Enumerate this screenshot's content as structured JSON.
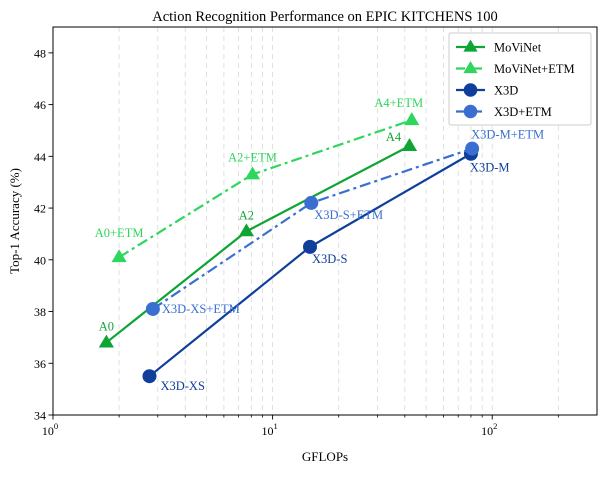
{
  "chart_data": {
    "type": "line",
    "title": "Action Recognition Performance on EPIC KITCHENS 100",
    "xlabel": "GFLOPs",
    "ylabel": "Top-1 Accuracy (%)",
    "x_scale": "log",
    "xlim": [
      1,
      300
    ],
    "ylim": [
      34,
      49
    ],
    "x_ticks": [
      1,
      10,
      100
    ],
    "x_tick_labels": [
      {
        "base": "10",
        "exp": "0"
      },
      {
        "base": "10",
        "exp": "1"
      },
      {
        "base": "10",
        "exp": "2"
      }
    ],
    "y_ticks": [
      34,
      36,
      38,
      40,
      42,
      44,
      46,
      48
    ],
    "y_tick_labels": [
      "34",
      "36",
      "38",
      "40",
      "42",
      "44",
      "46",
      "48"
    ],
    "grid": "vertical-dashed",
    "legend_position": "top-right",
    "series": [
      {
        "name": "MoViNet",
        "color": "#0fa534",
        "marker": "triangle",
        "line": "solid",
        "points": [
          {
            "x": 1.75,
            "y": 36.8,
            "label": "A0"
          },
          {
            "x": 7.6,
            "y": 41.1,
            "label": "A2"
          },
          {
            "x": 42.0,
            "y": 44.4,
            "label": "A4"
          }
        ]
      },
      {
        "name": "MoViNet+ETM",
        "color": "#2ed65e",
        "marker": "triangle",
        "line": "dashdot",
        "points": [
          {
            "x": 2.0,
            "y": 40.1,
            "label": "A0+ETM"
          },
          {
            "x": 8.1,
            "y": 43.3,
            "label": "A2+ETM"
          },
          {
            "x": 43.0,
            "y": 45.4,
            "label": "A4+ETM"
          }
        ]
      },
      {
        "name": "X3D",
        "color": "#0f3f9a",
        "marker": "circle",
        "line": "solid",
        "points": [
          {
            "x": 2.75,
            "y": 35.5,
            "label": "X3D-XS"
          },
          {
            "x": 14.8,
            "y": 40.5,
            "label": "X3D-S"
          },
          {
            "x": 80.0,
            "y": 44.1,
            "label": "X3D-M"
          }
        ]
      },
      {
        "name": "X3D+ETM",
        "color": "#3a6fd1",
        "marker": "circle",
        "line": "dashdot",
        "points": [
          {
            "x": 2.85,
            "y": 38.1,
            "label": "X3D-XS+ETM"
          },
          {
            "x": 15.0,
            "y": 42.2,
            "label": "X3D-S+ETM"
          },
          {
            "x": 81.0,
            "y": 44.3,
            "label": "X3D-M+ETM"
          }
        ]
      }
    ]
  }
}
